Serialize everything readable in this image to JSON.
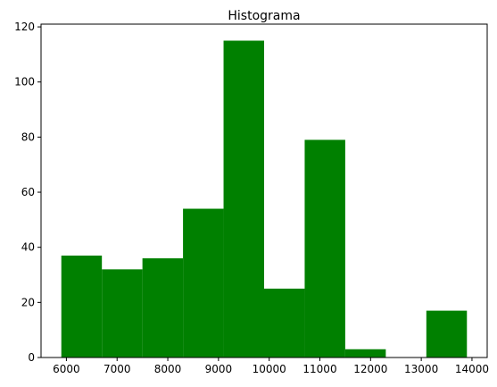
{
  "chart_data": {
    "type": "bar",
    "title": "Histograma",
    "xlabel": "",
    "ylabel": "",
    "bar_color": "#008000",
    "bin_edges": [
      5900,
      6700,
      7500,
      8300,
      9100,
      9900,
      10700,
      11500,
      12300,
      13100,
      13900
    ],
    "values": [
      37,
      32,
      36,
      54,
      115,
      25,
      79,
      3,
      0,
      17
    ],
    "xlim": [
      5500,
      14300
    ],
    "ylim": [
      0,
      121
    ],
    "xticks": [
      6000,
      7000,
      8000,
      9000,
      10000,
      11000,
      12000,
      13000,
      14000
    ],
    "yticks": [
      0,
      20,
      40,
      60,
      80,
      100,
      120
    ],
    "grid": false
  }
}
